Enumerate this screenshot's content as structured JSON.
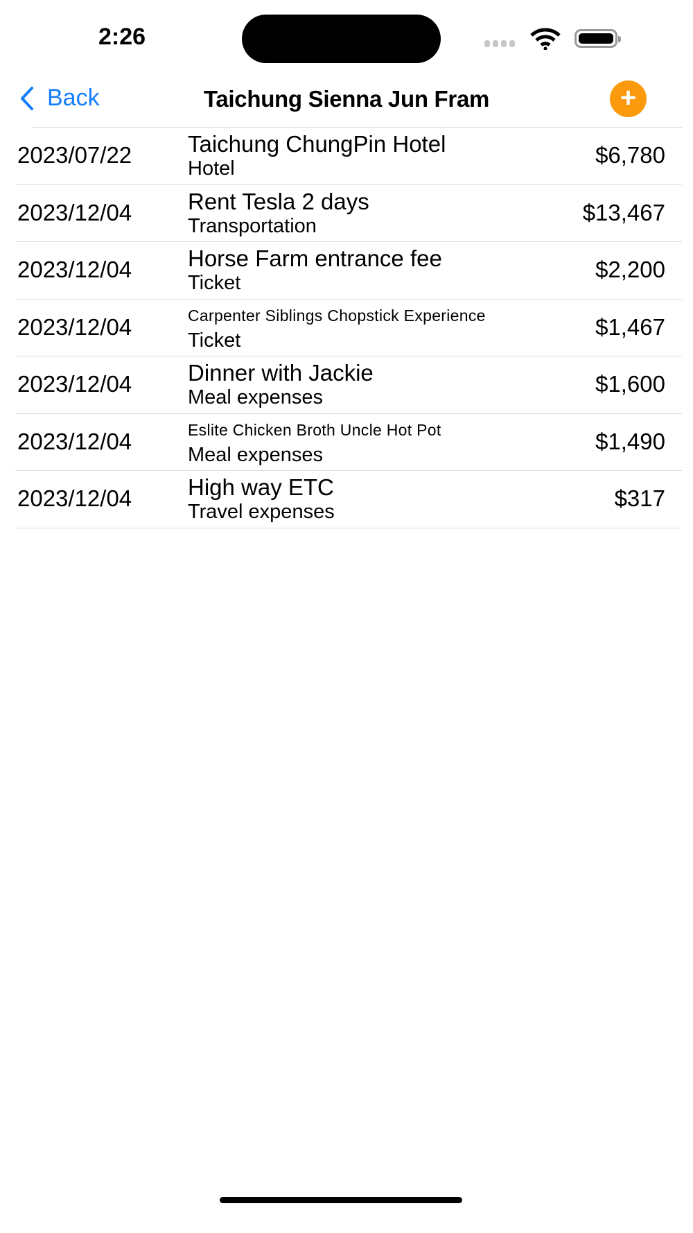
{
  "status_bar": {
    "time": "2:26"
  },
  "nav": {
    "back_label": "Back",
    "title": "Taichung Sienna Jun Fram",
    "add_icon": "plus-circle-icon",
    "accent": "#147efb",
    "add_color": "#fb9a0d"
  },
  "expenses": [
    {
      "date": "2023/07/22",
      "name": "Taichung ChungPin Hotel",
      "category": "Hotel",
      "amount": "$6,780"
    },
    {
      "date": "2023/12/04",
      "name": "Rent Tesla 2 days",
      "category": "Transportation",
      "amount": "$13,467"
    },
    {
      "date": "2023/12/04",
      "name": "Horse Farm entrance fee",
      "category": "Ticket",
      "amount": "$2,200"
    },
    {
      "date": "2023/12/04",
      "name": "Carpenter Siblings Chopstick Experience",
      "category": "Ticket",
      "amount": "$1,467"
    },
    {
      "date": "2023/12/04",
      "name": "Dinner with Jackie",
      "category": "Meal expenses",
      "amount": "$1,600"
    },
    {
      "date": "2023/12/04",
      "name": "Eslite Chicken Broth Uncle Hot Pot",
      "category": "Meal expenses",
      "amount": "$1,490"
    },
    {
      "date": "2023/12/04",
      "name": "High way ETC",
      "category": "Travel expenses",
      "amount": "$317"
    }
  ]
}
